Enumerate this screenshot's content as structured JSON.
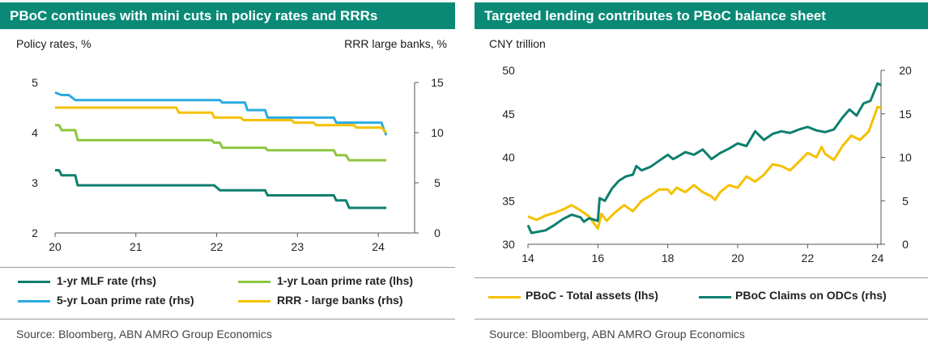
{
  "left_panel": {
    "title": "PBoC continues with mini cuts in policy rates and RRRs",
    "unit_left": "Policy rates, %",
    "unit_right": "RRR large banks, %",
    "source": "Source: Bloomberg, ABN AMRO Group Economics",
    "legend": [
      {
        "label": "1-yr MLF rate (rhs)",
        "color": "#0f7f6e"
      },
      {
        "label": "1-yr Loan prime rate (lhs)",
        "color": "#8cc63f"
      },
      {
        "label": "5-yr Loan prime rate (rhs)",
        "color": "#29abe2"
      },
      {
        "label": "RRR - large banks (rhs)",
        "color": "#f5c000"
      }
    ]
  },
  "right_panel": {
    "title": "Targeted lending contributes to PBoC balance sheet",
    "unit_left": "CNY trillion",
    "source": "Source: Bloomberg, ABN AMRO Group Economics",
    "legend": [
      {
        "label": "PBoC - Total assets (lhs)",
        "color": "#f5c000"
      },
      {
        "label": "PBoC Claims on ODCs (rhs)",
        "color": "#0f7f6e"
      }
    ]
  },
  "chart_data": [
    {
      "type": "line",
      "title": "PBoC continues with mini cuts in policy rates and RRRs",
      "xlabel": "",
      "ylabel": "Policy rates, %",
      "y2label": "RRR large banks, %",
      "xlim": [
        2020.0,
        2024.45
      ],
      "ylim": [
        2,
        5
      ],
      "y2lim": [
        0,
        15
      ],
      "xticks": [
        20,
        21,
        22,
        23,
        24
      ],
      "xtick_values": [
        2020,
        2021,
        2022,
        2023,
        2024
      ],
      "yticks": [
        2,
        3,
        4,
        5
      ],
      "y2ticks": [
        0,
        5,
        10,
        15
      ],
      "grid": false,
      "series": [
        {
          "name": "1-yr MLF rate (rhs)",
          "axis": "left",
          "color": "#0f7f6e",
          "points": [
            [
              2020.0,
              3.25
            ],
            [
              2020.05,
              3.25
            ],
            [
              2020.08,
              3.15
            ],
            [
              2020.25,
              3.15
            ],
            [
              2020.28,
              2.95
            ],
            [
              2021.97,
              2.95
            ],
            [
              2022.04,
              2.85
            ],
            [
              2022.6,
              2.85
            ],
            [
              2022.63,
              2.75
            ],
            [
              2023.45,
              2.75
            ],
            [
              2023.48,
              2.65
            ],
            [
              2023.6,
              2.65
            ],
            [
              2023.64,
              2.5
            ],
            [
              2024.1,
              2.5
            ]
          ]
        },
        {
          "name": "1-yr Loan prime rate (lhs)",
          "axis": "left",
          "color": "#8cc63f",
          "points": [
            [
              2020.0,
              4.15
            ],
            [
              2020.05,
              4.15
            ],
            [
              2020.08,
              4.05
            ],
            [
              2020.25,
              4.05
            ],
            [
              2020.28,
              3.85
            ],
            [
              2021.94,
              3.85
            ],
            [
              2021.97,
              3.8
            ],
            [
              2022.04,
              3.8
            ],
            [
              2022.07,
              3.7
            ],
            [
              2022.6,
              3.7
            ],
            [
              2022.63,
              3.65
            ],
            [
              2023.45,
              3.65
            ],
            [
              2023.48,
              3.55
            ],
            [
              2023.6,
              3.55
            ],
            [
              2023.64,
              3.45
            ],
            [
              2024.1,
              3.45
            ]
          ]
        },
        {
          "name": "5-yr Loan prime rate (rhs)",
          "axis": "left",
          "color": "#29abe2",
          "points": [
            [
              2020.0,
              4.8
            ],
            [
              2020.08,
              4.75
            ],
            [
              2020.17,
              4.75
            ],
            [
              2020.25,
              4.65
            ],
            [
              2022.04,
              4.65
            ],
            [
              2022.07,
              4.6
            ],
            [
              2022.35,
              4.6
            ],
            [
              2022.38,
              4.45
            ],
            [
              2022.6,
              4.45
            ],
            [
              2022.63,
              4.3
            ],
            [
              2023.45,
              4.3
            ],
            [
              2023.48,
              4.2
            ],
            [
              2024.04,
              4.2
            ],
            [
              2024.07,
              4.06
            ],
            [
              2024.1,
              3.95
            ]
          ]
        },
        {
          "name": "RRR - large banks (rhs)",
          "axis": "right",
          "color": "#f5c000",
          "points": [
            [
              2020.0,
              12.5
            ],
            [
              2021.5,
              12.5
            ],
            [
              2021.53,
              12.0
            ],
            [
              2021.94,
              12.0
            ],
            [
              2021.97,
              11.5
            ],
            [
              2022.3,
              11.5
            ],
            [
              2022.33,
              11.25
            ],
            [
              2022.93,
              11.25
            ],
            [
              2022.96,
              11.0
            ],
            [
              2023.2,
              11.0
            ],
            [
              2023.23,
              10.75
            ],
            [
              2023.7,
              10.75
            ],
            [
              2023.73,
              10.5
            ],
            [
              2024.04,
              10.5
            ],
            [
              2024.1,
              10.0
            ]
          ]
        }
      ]
    },
    {
      "type": "line",
      "title": "Targeted lending contributes to PBoC balance sheet",
      "xlabel": "",
      "ylabel": "CNY trillion",
      "y2label": "",
      "xlim": [
        2014.0,
        2024.1
      ],
      "ylim": [
        30,
        50
      ],
      "y2lim": [
        0,
        20
      ],
      "xticks": [
        14,
        16,
        18,
        20,
        22,
        24
      ],
      "xtick_values": [
        2014,
        2016,
        2018,
        2020,
        2022,
        2024
      ],
      "yticks": [
        30,
        35,
        40,
        45,
        50
      ],
      "y2ticks": [
        0,
        5,
        10,
        15,
        20
      ],
      "grid": false,
      "series": [
        {
          "name": "PBoC - Total assets (lhs)",
          "axis": "left",
          "color": "#f5c000",
          "points": [
            [
              2014.0,
              33.2
            ],
            [
              2014.25,
              32.8
            ],
            [
              2014.5,
              33.3
            ],
            [
              2014.75,
              33.6
            ],
            [
              2015.0,
              34.0
            ],
            [
              2015.25,
              34.5
            ],
            [
              2015.5,
              33.9
            ],
            [
              2015.75,
              33.2
            ],
            [
              2016.0,
              31.8
            ],
            [
              2016.1,
              33.5
            ],
            [
              2016.25,
              32.7
            ],
            [
              2016.5,
              33.7
            ],
            [
              2016.75,
              34.5
            ],
            [
              2017.0,
              33.8
            ],
            [
              2017.25,
              35.0
            ],
            [
              2017.5,
              35.6
            ],
            [
              2017.75,
              36.3
            ],
            [
              2018.0,
              36.3
            ],
            [
              2018.1,
              35.8
            ],
            [
              2018.25,
              36.5
            ],
            [
              2018.5,
              36.0
            ],
            [
              2018.75,
              36.8
            ],
            [
              2019.0,
              36.0
            ],
            [
              2019.25,
              35.5
            ],
            [
              2019.35,
              35.1
            ],
            [
              2019.5,
              36.0
            ],
            [
              2019.75,
              36.8
            ],
            [
              2020.0,
              36.5
            ],
            [
              2020.25,
              37.8
            ],
            [
              2020.5,
              37.2
            ],
            [
              2020.75,
              38.0
            ],
            [
              2021.0,
              39.2
            ],
            [
              2021.25,
              39.0
            ],
            [
              2021.5,
              38.5
            ],
            [
              2021.75,
              39.5
            ],
            [
              2022.0,
              40.5
            ],
            [
              2022.25,
              40.0
            ],
            [
              2022.4,
              41.2
            ],
            [
              2022.5,
              40.4
            ],
            [
              2022.75,
              39.7
            ],
            [
              2023.0,
              41.3
            ],
            [
              2023.25,
              42.5
            ],
            [
              2023.5,
              42.0
            ],
            [
              2023.75,
              43.0
            ],
            [
              2024.0,
              45.8
            ],
            [
              2024.1,
              45.7
            ]
          ]
        },
        {
          "name": "PBoC Claims on ODCs (rhs)",
          "axis": "right",
          "color": "#0f7f6e",
          "points": [
            [
              2014.0,
              2.2
            ],
            [
              2014.1,
              1.3
            ],
            [
              2014.5,
              1.6
            ],
            [
              2014.75,
              2.2
            ],
            [
              2015.0,
              2.9
            ],
            [
              2015.25,
              3.4
            ],
            [
              2015.5,
              3.1
            ],
            [
              2015.6,
              2.6
            ],
            [
              2015.75,
              3.0
            ],
            [
              2016.0,
              2.7
            ],
            [
              2016.05,
              5.3
            ],
            [
              2016.2,
              5.0
            ],
            [
              2016.4,
              6.4
            ],
            [
              2016.6,
              7.3
            ],
            [
              2016.8,
              7.8
            ],
            [
              2017.0,
              8.0
            ],
            [
              2017.1,
              9.0
            ],
            [
              2017.25,
              8.5
            ],
            [
              2017.5,
              8.9
            ],
            [
              2017.75,
              9.6
            ],
            [
              2018.0,
              10.3
            ],
            [
              2018.15,
              9.8
            ],
            [
              2018.25,
              10.0
            ],
            [
              2018.5,
              10.6
            ],
            [
              2018.75,
              10.3
            ],
            [
              2019.0,
              10.9
            ],
            [
              2019.25,
              9.8
            ],
            [
              2019.5,
              10.5
            ],
            [
              2019.75,
              11.0
            ],
            [
              2020.0,
              11.6
            ],
            [
              2020.25,
              11.3
            ],
            [
              2020.5,
              13.0
            ],
            [
              2020.75,
              12.0
            ],
            [
              2021.0,
              12.7
            ],
            [
              2021.25,
              13.0
            ],
            [
              2021.5,
              12.8
            ],
            [
              2021.75,
              13.2
            ],
            [
              2022.0,
              13.5
            ],
            [
              2022.25,
              13.1
            ],
            [
              2022.5,
              12.9
            ],
            [
              2022.75,
              13.2
            ],
            [
              2023.0,
              14.6
            ],
            [
              2023.2,
              15.5
            ],
            [
              2023.4,
              14.8
            ],
            [
              2023.6,
              16.2
            ],
            [
              2023.8,
              16.5
            ],
            [
              2024.0,
              18.5
            ],
            [
              2024.1,
              18.3
            ]
          ]
        }
      ]
    }
  ]
}
